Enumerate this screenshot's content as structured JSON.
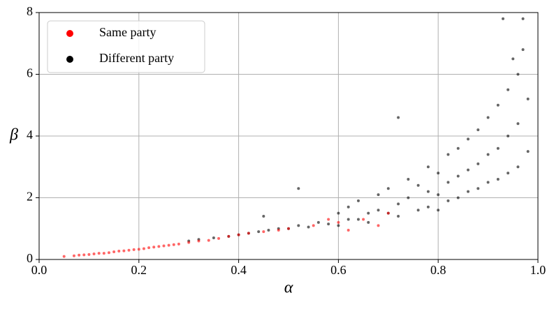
{
  "chart_data": {
    "type": "scatter",
    "x_label": "α",
    "y_label": "β",
    "xlim": [
      0,
      1
    ],
    "ylim": [
      0,
      8
    ],
    "xticks": [
      {
        "value": 0,
        "label": "0.0"
      },
      0.2,
      0.4,
      0.6,
      0.8,
      {
        "value": 1,
        "label": "1.0"
      }
    ],
    "yticks": [
      0,
      2,
      4,
      6,
      8
    ],
    "grid": true,
    "legend": "upper left",
    "series": [
      {
        "name": "Same party",
        "color": "#ff0000",
        "x": [
          0.05,
          0.07,
          0.08,
          0.09,
          0.1,
          0.11,
          0.12,
          0.13,
          0.14,
          0.15,
          0.16,
          0.17,
          0.18,
          0.19,
          0.2,
          0.21,
          0.22,
          0.23,
          0.24,
          0.25,
          0.26,
          0.27,
          0.28,
          0.3,
          0.32,
          0.34,
          0.36,
          0.38,
          0.4,
          0.42,
          0.45,
          0.48,
          0.5,
          0.55,
          0.6,
          0.65,
          0.7,
          0.62,
          0.68,
          0.58
        ],
        "values": [
          0.1,
          0.12,
          0.14,
          0.15,
          0.16,
          0.18,
          0.2,
          0.2,
          0.22,
          0.25,
          0.27,
          0.28,
          0.3,
          0.32,
          0.33,
          0.35,
          0.38,
          0.4,
          0.42,
          0.44,
          0.46,
          0.48,
          0.5,
          0.55,
          0.6,
          0.62,
          0.68,
          0.75,
          0.8,
          0.85,
          0.9,
          0.95,
          1.0,
          1.1,
          1.2,
          1.3,
          1.5,
          0.95,
          1.1,
          1.3
        ]
      },
      {
        "name": "Different party",
        "color": "#000000",
        "x": [
          0.3,
          0.32,
          0.35,
          0.38,
          0.4,
          0.42,
          0.44,
          0.46,
          0.48,
          0.5,
          0.52,
          0.54,
          0.56,
          0.58,
          0.6,
          0.6,
          0.62,
          0.62,
          0.64,
          0.64,
          0.66,
          0.66,
          0.68,
          0.68,
          0.7,
          0.7,
          0.72,
          0.72,
          0.74,
          0.74,
          0.76,
          0.76,
          0.78,
          0.78,
          0.78,
          0.8,
          0.8,
          0.8,
          0.82,
          0.82,
          0.82,
          0.84,
          0.84,
          0.84,
          0.86,
          0.86,
          0.86,
          0.88,
          0.88,
          0.88,
          0.9,
          0.9,
          0.9,
          0.92,
          0.92,
          0.92,
          0.94,
          0.94,
          0.94,
          0.96,
          0.96,
          0.96,
          0.97,
          0.98,
          0.98,
          0.93,
          0.95,
          0.97,
          0.72,
          0.52,
          0.45
        ],
        "values": [
          0.6,
          0.65,
          0.7,
          0.75,
          0.8,
          0.85,
          0.9,
          0.95,
          1.0,
          1.0,
          1.1,
          1.05,
          1.2,
          1.15,
          1.1,
          1.5,
          1.3,
          1.7,
          1.3,
          1.9,
          1.5,
          1.2,
          1.6,
          2.1,
          1.5,
          2.3,
          1.8,
          1.4,
          2.0,
          2.6,
          1.6,
          2.4,
          1.7,
          2.2,
          3.0,
          1.6,
          2.1,
          2.8,
          1.9,
          2.5,
          3.4,
          2.0,
          2.7,
          3.6,
          2.2,
          2.9,
          3.9,
          2.3,
          3.1,
          4.2,
          2.5,
          3.4,
          4.6,
          2.6,
          3.6,
          5.0,
          2.8,
          4.0,
          5.5,
          3.0,
          4.4,
          6.0,
          6.8,
          3.5,
          5.2,
          7.8,
          6.5,
          7.8,
          4.6,
          2.3,
          1.4
        ]
      }
    ]
  }
}
